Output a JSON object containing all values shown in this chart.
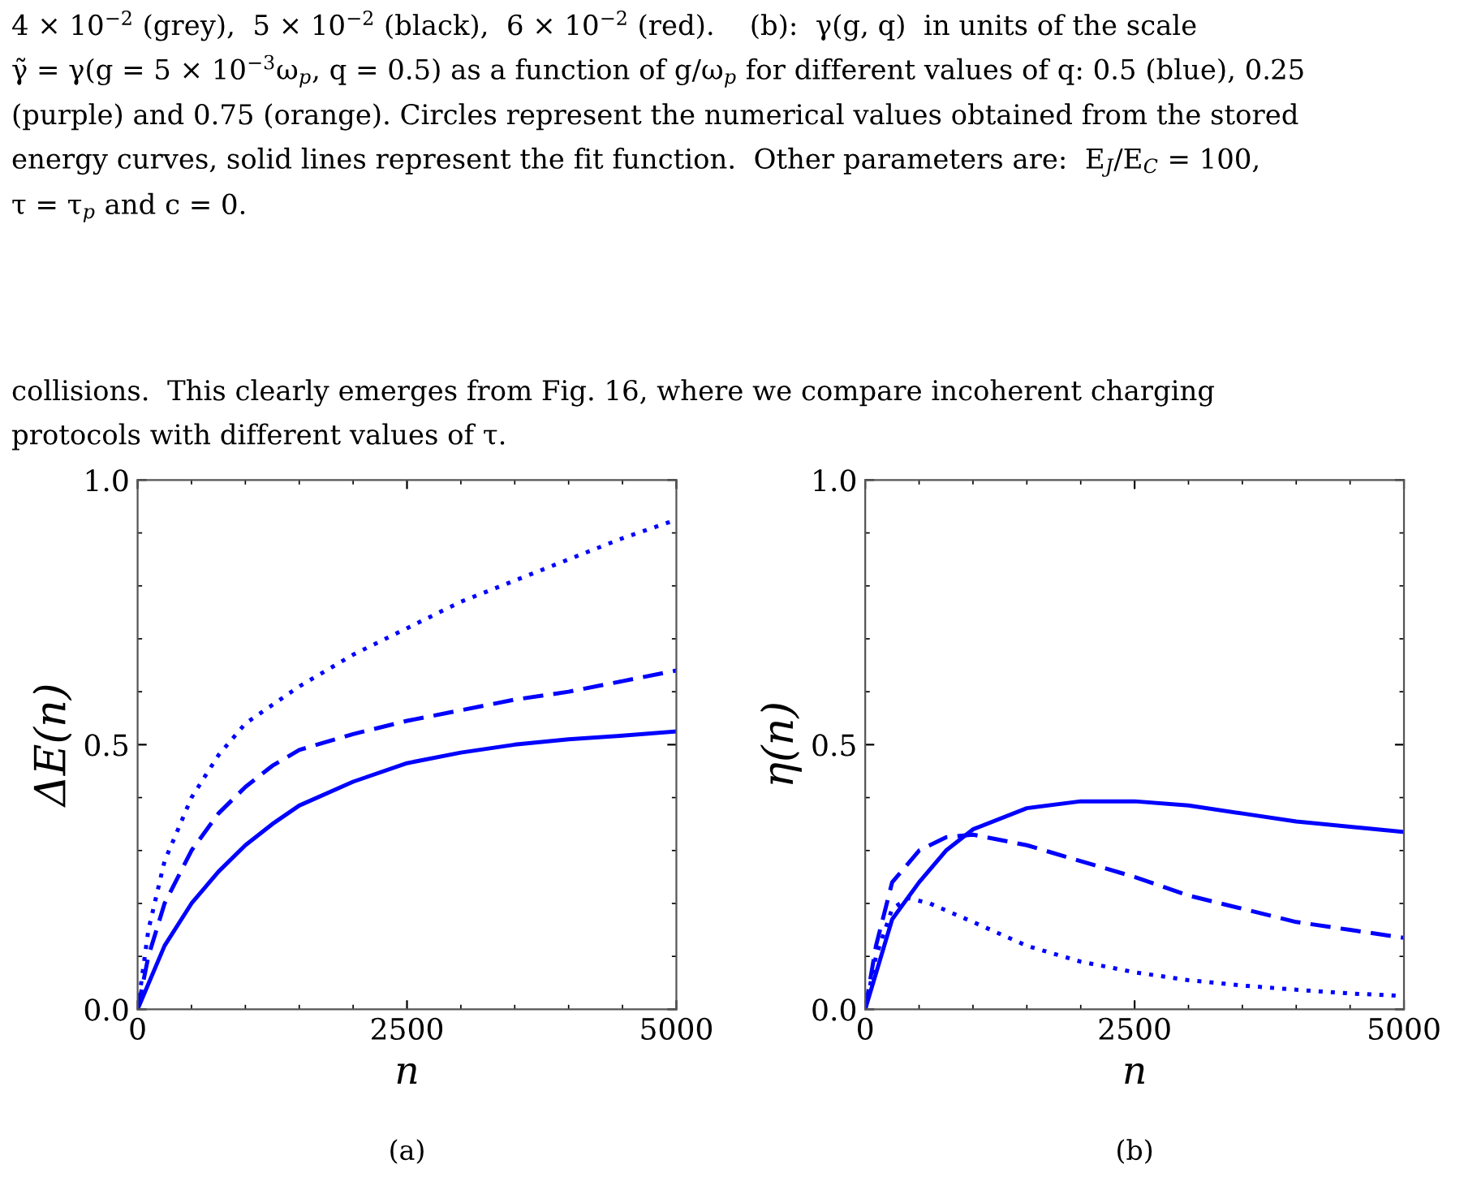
{
  "chart_data": [
    {
      "type": "line",
      "xlabel": "n",
      "ylabel": "ΔE(n)",
      "annotations": [
        "4 × 10$^{−2}$ (grey),  5 × 10$^{−2}$ (black),  6 × 10$^{−2}$ (red).    (b):  γ(g, q)  in units of the scale",
        "γ̃ = γ(g = 5 × 10$^{−3}$ω$_{p}$, q = 0.5) as a function of g/ω$_{p}$ for different values of q: 0.5 (blue), 0.25",
        "(purple) and 0.75 (orange). Circles represent the numerical values obtained from the stored",
        "energy curves, solid lines represent the fit function.  Other parameters are:  E$_{J}$/E$_{C}$ = 100,",
        "τ = τ$_{p}$ and c = 0.",
        "collisions.  This clearly emerges from Fig. 16, where we compare incoherent charging",
        "protocols with different values of τ.",
        "(a)"
      ],
      "xlim": [
        0,
        5000
      ],
      "ylim": [
        0,
        1
      ],
      "xticks": [
        0,
        2500,
        5000
      ],
      "yticks": [
        {
          "value": 0,
          "label": "0.0"
        },
        {
          "value": 0.5,
          "label": "0.5"
        },
        {
          "value": 1,
          "label": "1.0"
        }
      ],
      "grid": false,
      "legend": false,
      "series": [
        {
          "color": "#0000ff",
          "line_style": "solid",
          "x": [
            0,
            250,
            500,
            750,
            1000,
            1250,
            1500,
            2000,
            2500,
            3000,
            3500,
            4000,
            4500,
            5000
          ],
          "values": [
            0,
            0.12,
            0.2,
            0.26,
            0.31,
            0.35,
            0.385,
            0.43,
            0.465,
            0.485,
            0.5,
            0.51,
            0.517,
            0.525
          ]
        },
        {
          "color": "#0000ff",
          "line_style": "dashed",
          "x": [
            0,
            100,
            250,
            500,
            750,
            1000,
            1250,
            1500,
            2000,
            2500,
            3000,
            3500,
            4000,
            4500,
            5000
          ],
          "values": [
            0,
            0.1,
            0.2,
            0.3,
            0.37,
            0.42,
            0.46,
            0.49,
            0.52,
            0.545,
            0.565,
            0.585,
            0.6,
            0.62,
            0.64
          ]
        },
        {
          "color": "#0000ff",
          "line_style": "dotted",
          "x": [
            0,
            100,
            250,
            500,
            750,
            1000,
            1500,
            2000,
            2500,
            3000,
            3500,
            4000,
            4500,
            5000
          ],
          "values": [
            0,
            0.15,
            0.28,
            0.4,
            0.48,
            0.54,
            0.61,
            0.67,
            0.72,
            0.77,
            0.81,
            0.85,
            0.89,
            0.925
          ]
        }
      ]
    },
    {
      "type": "line",
      "xlabel": "n",
      "ylabel": "η(n)",
      "annotations": [
        "(b)"
      ],
      "xlim": [
        0,
        5000
      ],
      "ylim": [
        0,
        1
      ],
      "xticks": [
        0,
        2500,
        5000
      ],
      "yticks": [
        {
          "value": 0,
          "label": "0.0"
        },
        {
          "value": 0.5,
          "label": "0.5"
        },
        {
          "value": 1,
          "label": "1.0"
        }
      ],
      "grid": false,
      "legend": false,
      "series": [
        {
          "color": "#0000ff",
          "line_style": "solid",
          "x": [
            0,
            250,
            500,
            750,
            1000,
            1500,
            2000,
            2500,
            3000,
            3500,
            4000,
            4500,
            5000
          ],
          "values": [
            0,
            0.17,
            0.24,
            0.3,
            0.34,
            0.38,
            0.393,
            0.393,
            0.385,
            0.37,
            0.355,
            0.345,
            0.335
          ]
        },
        {
          "color": "#0000ff",
          "line_style": "dashed",
          "x": [
            0,
            100,
            250,
            500,
            750,
            1000,
            1500,
            2000,
            2500,
            3000,
            3500,
            4000,
            4500,
            5000
          ],
          "values": [
            0,
            0.12,
            0.24,
            0.3,
            0.325,
            0.33,
            0.31,
            0.28,
            0.25,
            0.215,
            0.19,
            0.165,
            0.15,
            0.135
          ]
        },
        {
          "color": "#0000ff",
          "line_style": "dotted",
          "x": [
            0,
            100,
            250,
            400,
            600,
            1000,
            1500,
            2000,
            2500,
            3000,
            3500,
            4000,
            4500,
            5000
          ],
          "values": [
            0,
            0.1,
            0.19,
            0.21,
            0.2,
            0.165,
            0.12,
            0.09,
            0.07,
            0.055,
            0.045,
            0.037,
            0.03,
            0.025
          ]
        }
      ]
    }
  ]
}
